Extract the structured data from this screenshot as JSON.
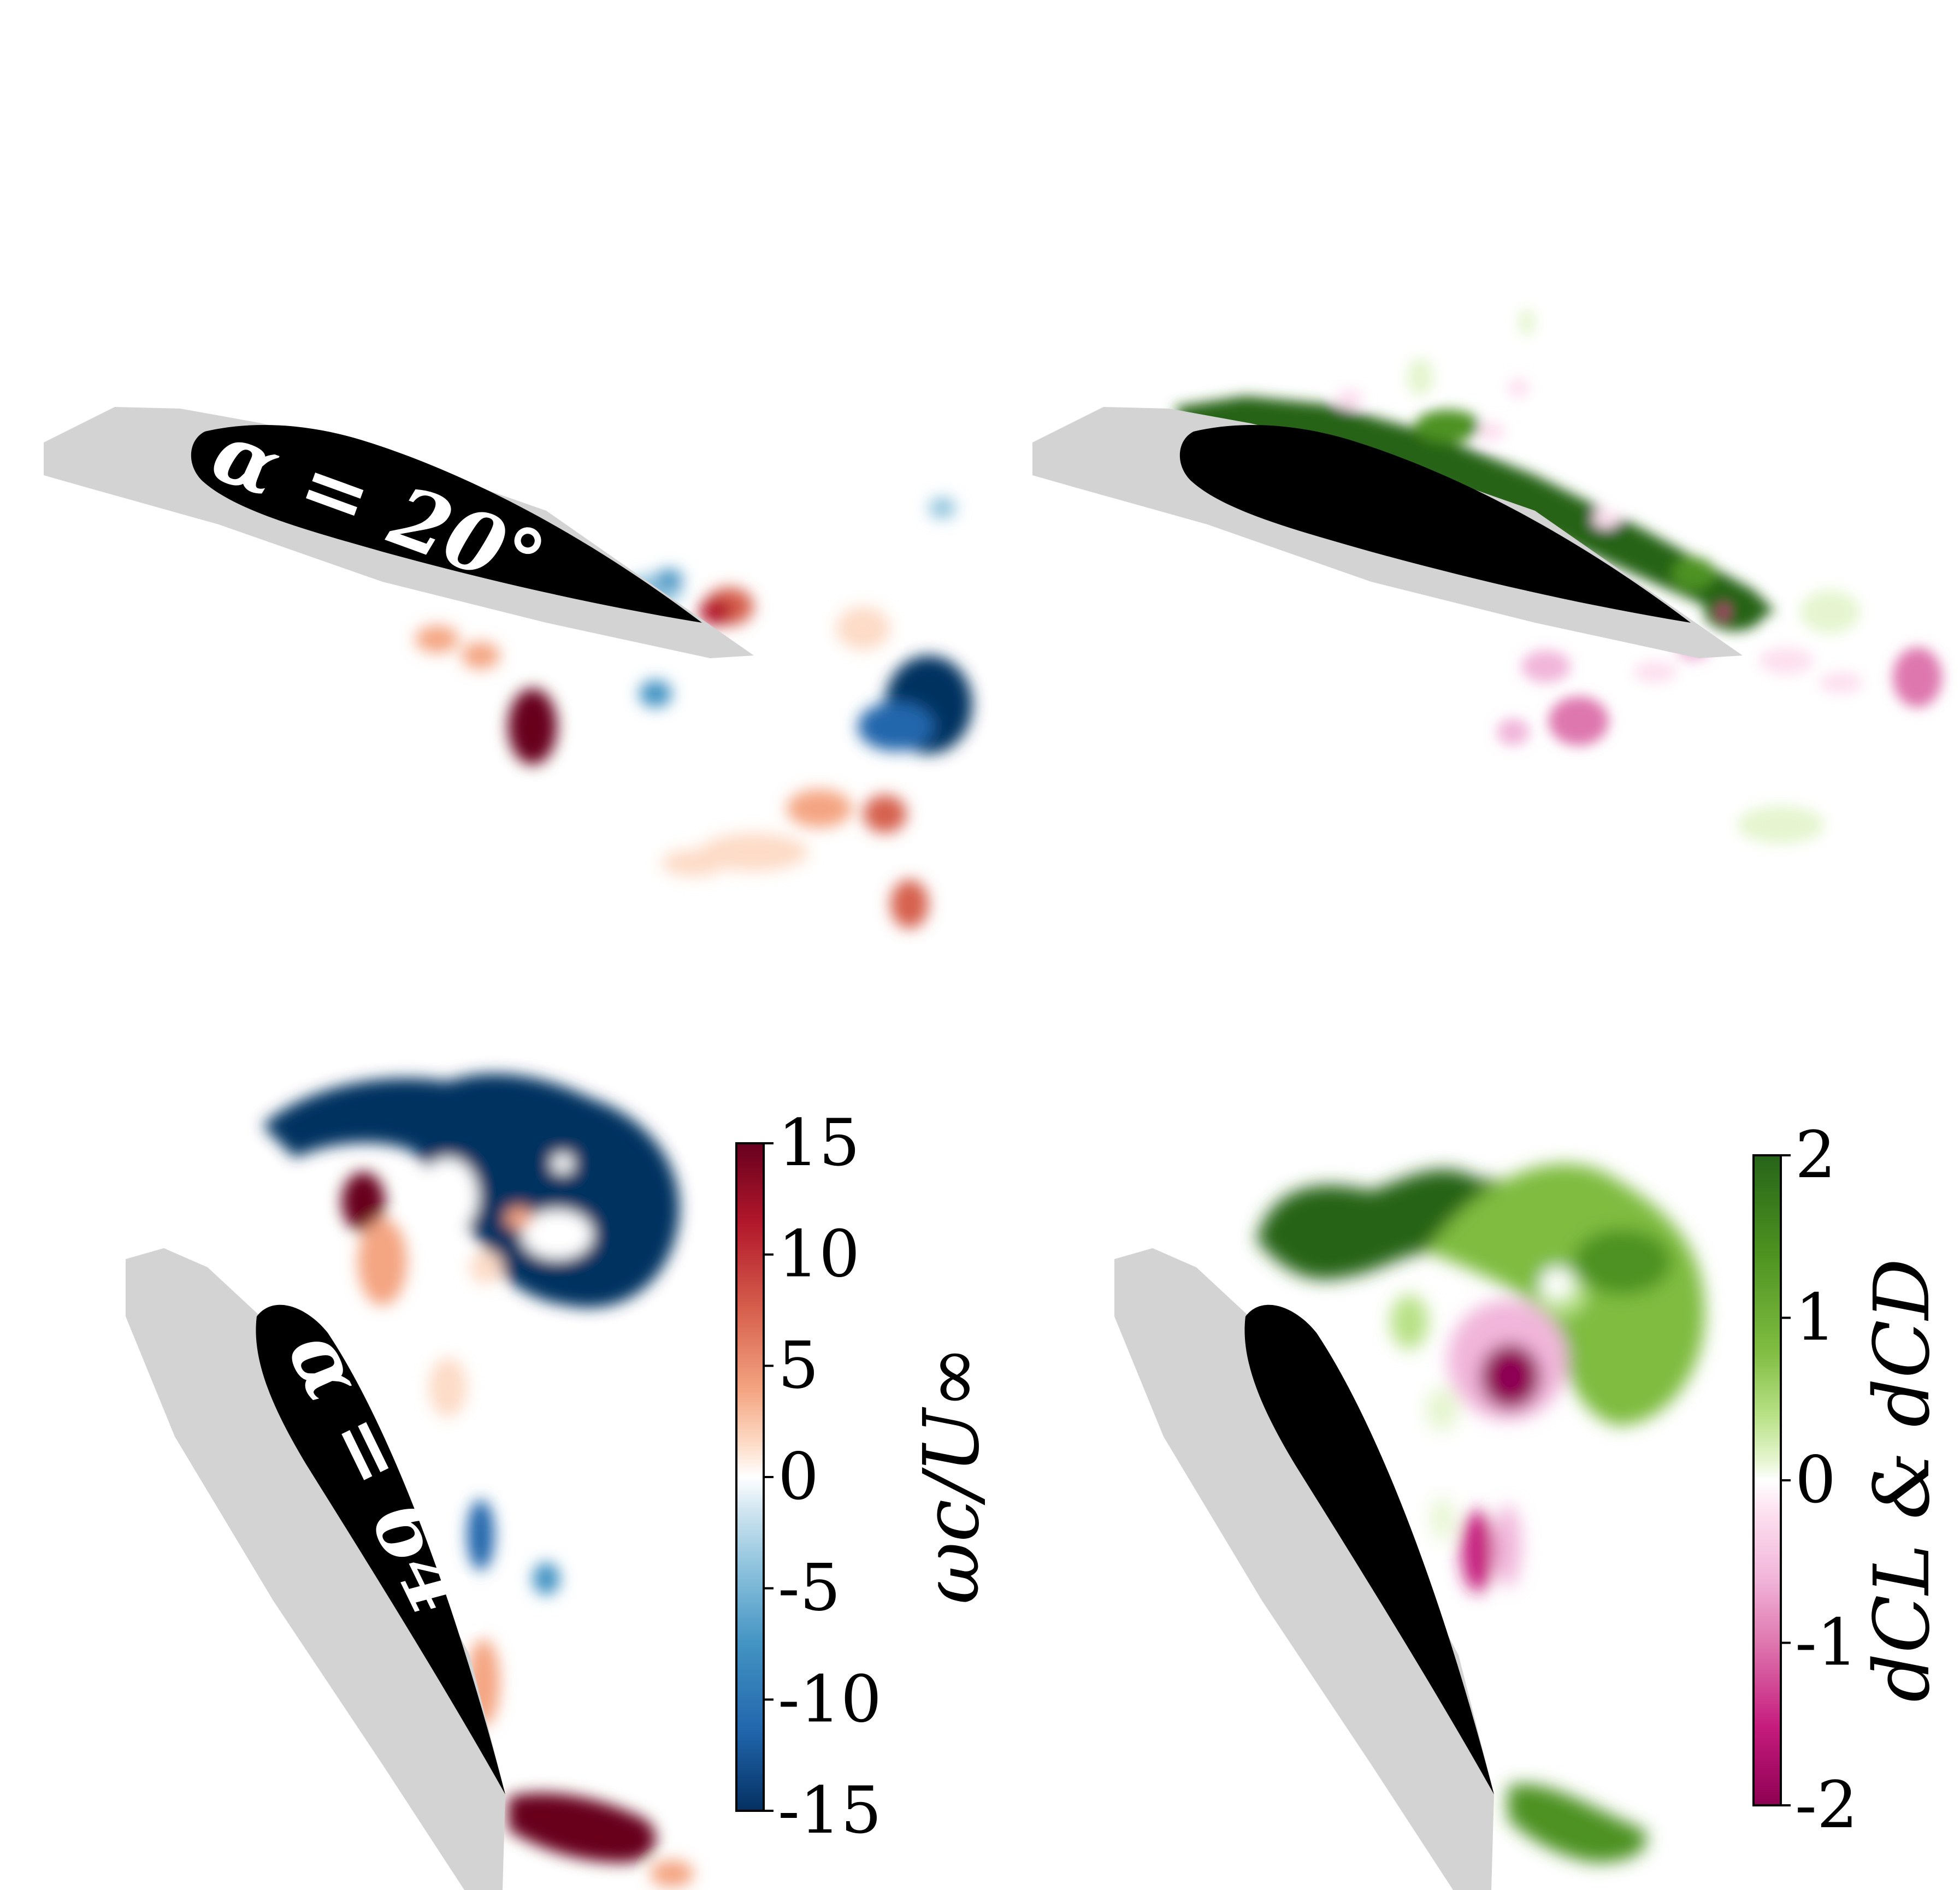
{
  "panels": {
    "top_left": {
      "annotation": "α = 20°"
    },
    "bottom_left": {
      "annotation": "α = 64°"
    }
  },
  "colorbars": {
    "vorticity": {
      "label": "ωc/U∞",
      "ticks": [
        "15",
        "10",
        "5",
        "0",
        "-5",
        "-10",
        "-15"
      ],
      "colors": {
        "max": "#67001f",
        "mid_high": "#f4a582",
        "zero": "#ffffff",
        "mid_low": "#92c5de",
        "min": "#053061"
      }
    },
    "force": {
      "label": "dCL & dCD",
      "ticks": [
        "2",
        "1",
        "0",
        "-1",
        "-2"
      ],
      "colors": {
        "max": "#276419",
        "mid_high": "#b8e186",
        "zero": "#ffffff",
        "mid_low": "#f1b6da",
        "min": "#8e0152"
      }
    }
  },
  "colors": {
    "airfoil_black": "#000000",
    "airfoil_shadow": "#d3d3d3",
    "vorticity_red": "#b2182b",
    "vorticity_blue": "#2166ac",
    "force_green": "#4d9221",
    "force_pink": "#c51b7d"
  }
}
